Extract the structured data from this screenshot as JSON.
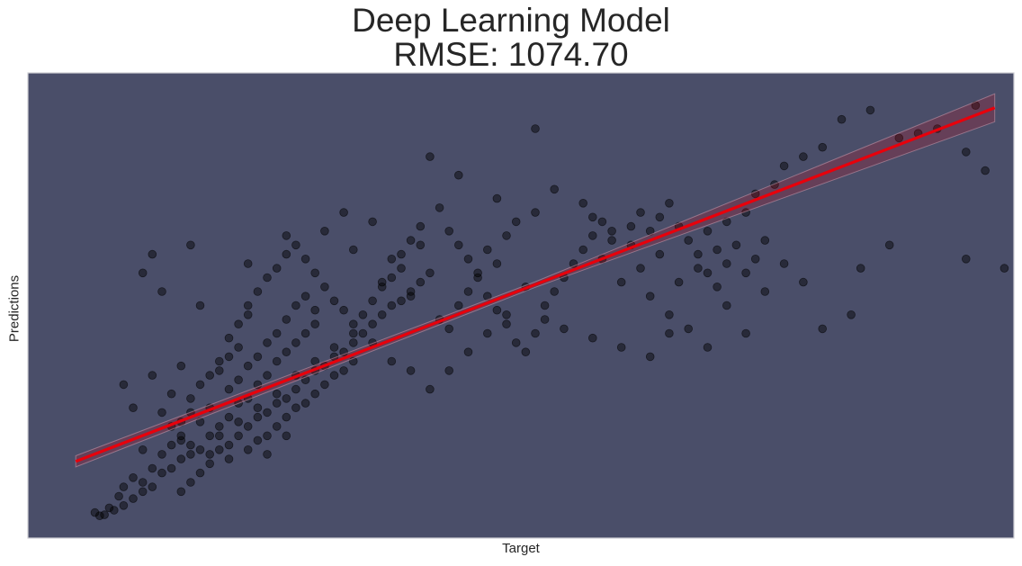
{
  "chart_data": {
    "type": "scatter",
    "title_line1": "Deep Learning Model",
    "title_line2": "RMSE: 1074.70",
    "xlabel": "Target",
    "ylabel": "Predictions",
    "grid": false,
    "plot_background": "#4a4e69",
    "point_color": "#000000",
    "line_color": "#e8000b",
    "xlim": [
      -3,
      100
    ],
    "ylim": [
      0,
      100
    ],
    "regression_line": {
      "x": [
        2,
        98
      ],
      "y": [
        16.5,
        92.5
      ]
    },
    "confidence_band_halfwidth": {
      "start": 1.2,
      "middle": 0.6,
      "end": 3.0
    },
    "points": [
      [
        4,
        5.5
      ],
      [
        5,
        5
      ],
      [
        6,
        6
      ],
      [
        4.5,
        4.8
      ],
      [
        5.5,
        6.5
      ],
      [
        7,
        7
      ],
      [
        8,
        8.5
      ],
      [
        6.5,
        9
      ],
      [
        9,
        10
      ],
      [
        10,
        11
      ],
      [
        7,
        11
      ],
      [
        8,
        13
      ],
      [
        9,
        12
      ],
      [
        11,
        14
      ],
      [
        12,
        15
      ],
      [
        13,
        17
      ],
      [
        10,
        15
      ],
      [
        14,
        18
      ],
      [
        15,
        19
      ],
      [
        11,
        18
      ],
      [
        12,
        20
      ],
      [
        13,
        21
      ],
      [
        9,
        19
      ],
      [
        16,
        22
      ],
      [
        17,
        24
      ],
      [
        15,
        25
      ],
      [
        18,
        26
      ],
      [
        14,
        27
      ],
      [
        16,
        28
      ],
      [
        19,
        29
      ],
      [
        20,
        30
      ],
      [
        12,
        31
      ],
      [
        8,
        28
      ],
      [
        7,
        33
      ],
      [
        10,
        35
      ],
      [
        13,
        37
      ],
      [
        17,
        36
      ],
      [
        21,
        33
      ],
      [
        22,
        35
      ],
      [
        23,
        38
      ],
      [
        24,
        40
      ],
      [
        19,
        41
      ],
      [
        18,
        39
      ],
      [
        25,
        42
      ],
      [
        26,
        44
      ],
      [
        27,
        46
      ],
      [
        20,
        48
      ],
      [
        15,
        50
      ],
      [
        11,
        53
      ],
      [
        9,
        57
      ],
      [
        10,
        61
      ],
      [
        14,
        63
      ],
      [
        20,
        59
      ],
      [
        24,
        65
      ],
      [
        28,
        66
      ],
      [
        30,
        70
      ],
      [
        31,
        62
      ],
      [
        33,
        68
      ],
      [
        35,
        60
      ],
      [
        34,
        55
      ],
      [
        36,
        58
      ],
      [
        38,
        63
      ],
      [
        37,
        52
      ],
      [
        39,
        57
      ],
      [
        40,
        47
      ],
      [
        42,
        50
      ],
      [
        41,
        45
      ],
      [
        43,
        53
      ],
      [
        44,
        56
      ],
      [
        46,
        59
      ],
      [
        45,
        62
      ],
      [
        47,
        65
      ],
      [
        48,
        68
      ],
      [
        50,
        70
      ],
      [
        39,
        82
      ],
      [
        42,
        78
      ],
      [
        46,
        73
      ],
      [
        50,
        88
      ],
      [
        52,
        75
      ],
      [
        55,
        72
      ],
      [
        56,
        69
      ],
      [
        58,
        66
      ],
      [
        60,
        63
      ],
      [
        57,
        60
      ],
      [
        59,
        55
      ],
      [
        61,
        58
      ],
      [
        63,
        61
      ],
      [
        62,
        52
      ],
      [
        64,
        48
      ],
      [
        66,
        45
      ],
      [
        65,
        55
      ],
      [
        67,
        58
      ],
      [
        69,
        62
      ],
      [
        68,
        66
      ],
      [
        70,
        68
      ],
      [
        72,
        70
      ],
      [
        73,
        74
      ],
      [
        75,
        76
      ],
      [
        76,
        80
      ],
      [
        78,
        82
      ],
      [
        80,
        84
      ],
      [
        82,
        90
      ],
      [
        85,
        92
      ],
      [
        88,
        86
      ],
      [
        90,
        87
      ],
      [
        92,
        88
      ],
      [
        95,
        83
      ],
      [
        96,
        93
      ],
      [
        97,
        79
      ],
      [
        99,
        58
      ],
      [
        95,
        60
      ],
      [
        87,
        63
      ],
      [
        84,
        58
      ],
      [
        83,
        48
      ],
      [
        80,
        45
      ],
      [
        78,
        55
      ],
      [
        76,
        59
      ],
      [
        74,
        53
      ],
      [
        72,
        44
      ],
      [
        70,
        50
      ],
      [
        68,
        41
      ],
      [
        64,
        44
      ],
      [
        62,
        39
      ],
      [
        59,
        41
      ],
      [
        56,
        43
      ],
      [
        53,
        45
      ],
      [
        51,
        50
      ],
      [
        49,
        54
      ],
      [
        47,
        48
      ],
      [
        45,
        44
      ],
      [
        43,
        40
      ],
      [
        41,
        36
      ],
      [
        39,
        32
      ],
      [
        37,
        36
      ],
      [
        35,
        38
      ],
      [
        33,
        42
      ],
      [
        31,
        44
      ],
      [
        29,
        41
      ],
      [
        27,
        38
      ],
      [
        25,
        35
      ],
      [
        23,
        31
      ],
      [
        21,
        28
      ],
      [
        19,
        25
      ],
      [
        17,
        22
      ],
      [
        16,
        18
      ],
      [
        15,
        14
      ],
      [
        14,
        12
      ],
      [
        13,
        10
      ],
      [
        17,
        19
      ],
      [
        18,
        20
      ],
      [
        19,
        22
      ],
      [
        20,
        24
      ],
      [
        21,
        26
      ],
      [
        22,
        27
      ],
      [
        23,
        29
      ],
      [
        24,
        30
      ],
      [
        25,
        32
      ],
      [
        26,
        34
      ],
      [
        27,
        36
      ],
      [
        28,
        37
      ],
      [
        29,
        39
      ],
      [
        30,
        40
      ],
      [
        31,
        42
      ],
      [
        32,
        44
      ],
      [
        33,
        46
      ],
      [
        34,
        48
      ],
      [
        35,
        50
      ],
      [
        36,
        51
      ],
      [
        37,
        53
      ],
      [
        38,
        55
      ],
      [
        13,
        25
      ],
      [
        14,
        30
      ],
      [
        15,
        33
      ],
      [
        16,
        35
      ],
      [
        17,
        38
      ],
      [
        18,
        43
      ],
      [
        19,
        46
      ],
      [
        20,
        50
      ],
      [
        21,
        53
      ],
      [
        22,
        56
      ],
      [
        23,
        58
      ],
      [
        24,
        61
      ],
      [
        25,
        63
      ],
      [
        26,
        60
      ],
      [
        27,
        57
      ],
      [
        28,
        54
      ],
      [
        29,
        51
      ],
      [
        30,
        49
      ],
      [
        31,
        46
      ],
      [
        32,
        48
      ],
      [
        33,
        51
      ],
      [
        34,
        54
      ],
      [
        35,
        56
      ],
      [
        36,
        61
      ],
      [
        37,
        64
      ],
      [
        38,
        67
      ],
      [
        40,
        71
      ],
      [
        41,
        66
      ],
      [
        42,
        63
      ],
      [
        43,
        60
      ],
      [
        44,
        57
      ],
      [
        45,
        52
      ],
      [
        46,
        49
      ],
      [
        47,
        46
      ],
      [
        48,
        42
      ],
      [
        49,
        40
      ],
      [
        50,
        44
      ],
      [
        51,
        47
      ],
      [
        52,
        53
      ],
      [
        53,
        56
      ],
      [
        54,
        59
      ],
      [
        55,
        62
      ],
      [
        56,
        65
      ],
      [
        57,
        68
      ],
      [
        58,
        64
      ],
      [
        60,
        67
      ],
      [
        61,
        70
      ],
      [
        62,
        66
      ],
      [
        63,
        69
      ],
      [
        64,
        72
      ],
      [
        65,
        67
      ],
      [
        66,
        64
      ],
      [
        67,
        61
      ],
      [
        68,
        57
      ],
      [
        69,
        54
      ],
      [
        70,
        59
      ],
      [
        71,
        63
      ],
      [
        72,
        57
      ],
      [
        73,
        60
      ],
      [
        74,
        64
      ],
      [
        22,
        22
      ],
      [
        23,
        24
      ],
      [
        24,
        26
      ],
      [
        25,
        28
      ],
      [
        26,
        29
      ],
      [
        27,
        31
      ],
      [
        28,
        33
      ],
      [
        29,
        35
      ],
      [
        30,
        36
      ],
      [
        31,
        38
      ],
      [
        18,
        32
      ],
      [
        19,
        34
      ],
      [
        20,
        37
      ],
      [
        21,
        39
      ],
      [
        22,
        42
      ],
      [
        23,
        44
      ],
      [
        24,
        47
      ],
      [
        25,
        50
      ],
      [
        26,
        52
      ],
      [
        27,
        49
      ],
      [
        11,
        27
      ],
      [
        12,
        24
      ],
      [
        13,
        22
      ],
      [
        14,
        20
      ],
      [
        16,
        16
      ],
      [
        18,
        17
      ],
      [
        20,
        19
      ],
      [
        21,
        21
      ],
      [
        22,
        18
      ],
      [
        24,
        22
      ]
    ]
  }
}
